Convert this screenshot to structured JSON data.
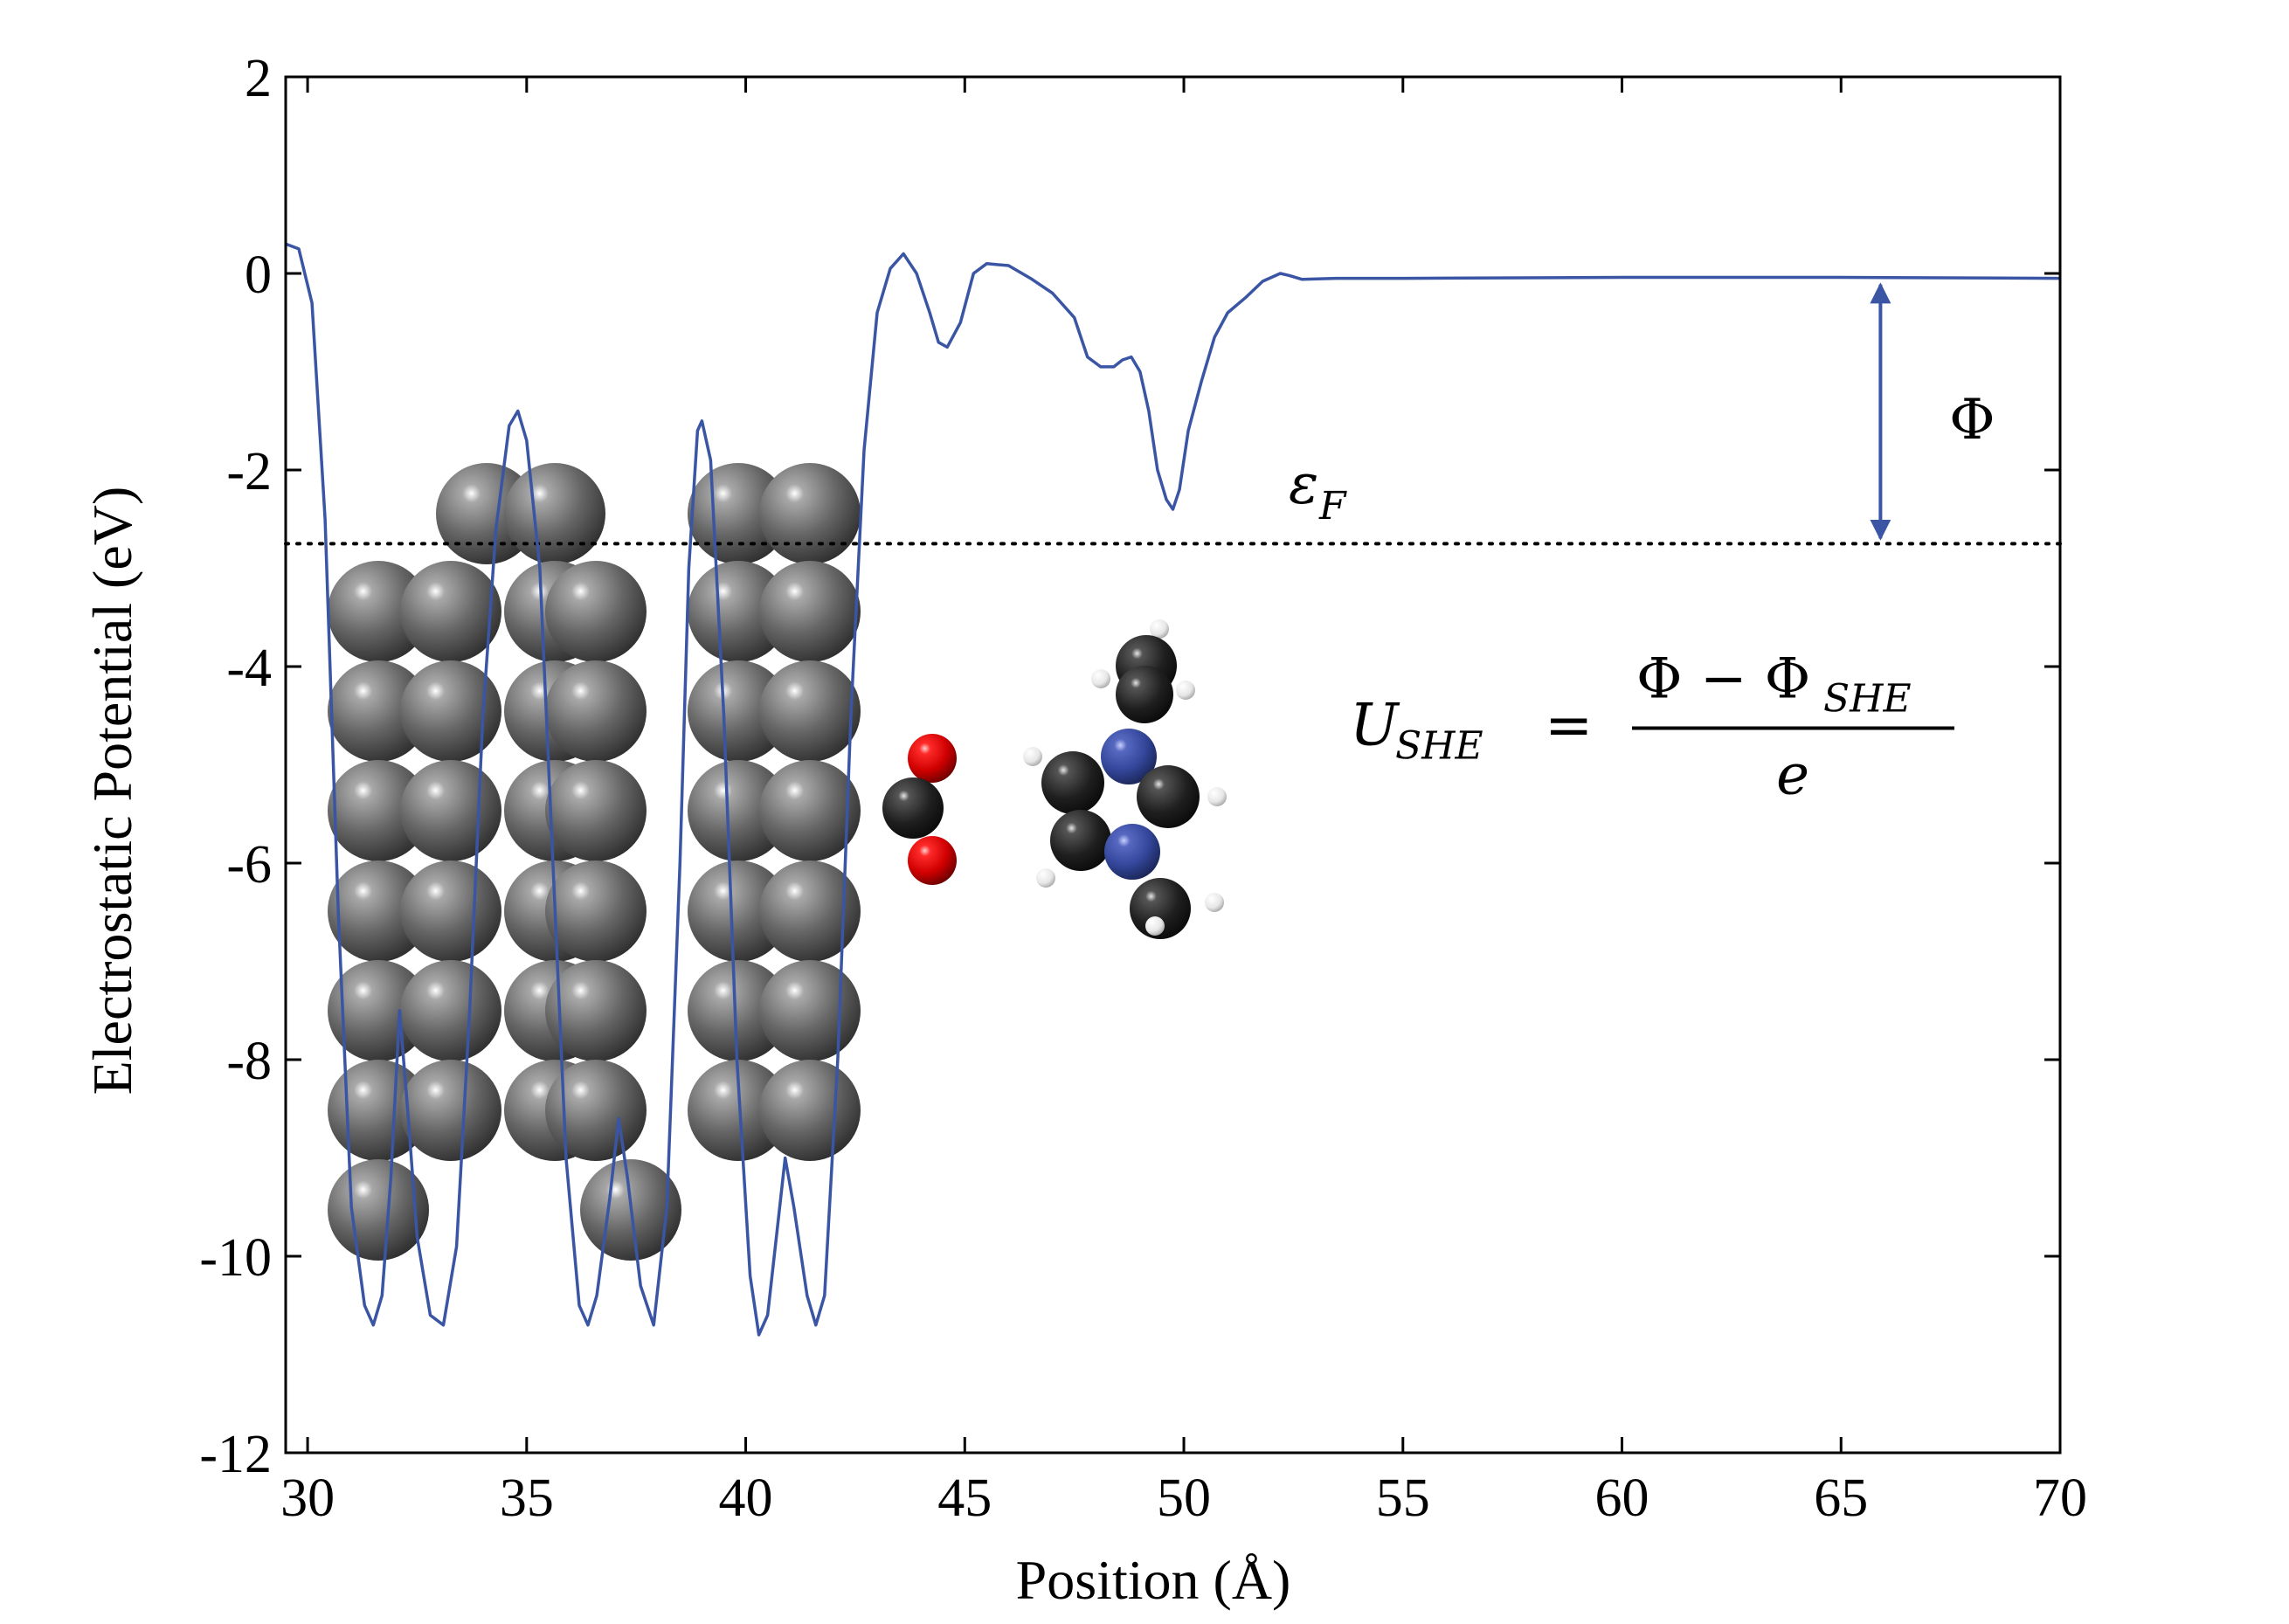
{
  "chart_data": {
    "type": "line",
    "xlabel": "Position (Å)",
    "ylabel": "Electrostatic Potential (eV)",
    "xlim": [
      29.5,
      70
    ],
    "ylim": [
      -12,
      2
    ],
    "x_ticks": [
      30,
      35,
      40,
      45,
      50,
      55,
      60,
      65,
      70
    ],
    "x_tick_labels": [
      "30",
      "35",
      "40",
      "45",
      "50",
      "55",
      "60",
      "65",
      "70"
    ],
    "y_ticks": [
      2,
      0,
      -2,
      -4,
      -6,
      -8,
      -10,
      -12
    ],
    "y_tick_labels": [
      "2",
      "0",
      "-2",
      "-4",
      "-6",
      "-8",
      "-10",
      "-12"
    ],
    "grid": false,
    "series": [
      {
        "color": "#3a55a4",
        "points": [
          [
            29.5,
            0.3
          ],
          [
            29.8,
            0.25
          ],
          [
            30.1,
            -0.3
          ],
          [
            30.4,
            -2.5
          ],
          [
            30.7,
            -6.5
          ],
          [
            31.0,
            -9.5
          ],
          [
            31.3,
            -10.5
          ],
          [
            31.5,
            -10.7
          ],
          [
            31.7,
            -10.4
          ],
          [
            31.9,
            -9.2
          ],
          [
            32.1,
            -7.5
          ],
          [
            32.3,
            -8.6
          ],
          [
            32.5,
            -9.8
          ],
          [
            32.8,
            -10.6
          ],
          [
            33.1,
            -10.7
          ],
          [
            33.4,
            -9.9
          ],
          [
            33.7,
            -7.5
          ],
          [
            34.0,
            -4.5
          ],
          [
            34.3,
            -2.6
          ],
          [
            34.6,
            -1.55
          ],
          [
            34.8,
            -1.4
          ],
          [
            35.0,
            -1.7
          ],
          [
            35.3,
            -3.0
          ],
          [
            35.6,
            -6.0
          ],
          [
            35.9,
            -9.0
          ],
          [
            36.2,
            -10.5
          ],
          [
            36.4,
            -10.7
          ],
          [
            36.6,
            -10.4
          ],
          [
            36.9,
            -9.4
          ],
          [
            37.1,
            -8.6
          ],
          [
            37.3,
            -9.2
          ],
          [
            37.6,
            -10.3
          ],
          [
            37.9,
            -10.7
          ],
          [
            38.2,
            -9.5
          ],
          [
            38.5,
            -6.0
          ],
          [
            38.7,
            -3.0
          ],
          [
            38.9,
            -1.6
          ],
          [
            39.0,
            -1.5
          ],
          [
            39.2,
            -1.9
          ],
          [
            39.5,
            -4.5
          ],
          [
            39.8,
            -8.0
          ],
          [
            40.1,
            -10.2
          ],
          [
            40.3,
            -10.8
          ],
          [
            40.5,
            -10.6
          ],
          [
            40.7,
            -9.8
          ],
          [
            40.9,
            -9.0
          ],
          [
            41.1,
            -9.5
          ],
          [
            41.4,
            -10.4
          ],
          [
            41.6,
            -10.7
          ],
          [
            41.8,
            -10.4
          ],
          [
            42.1,
            -8.0
          ],
          [
            42.4,
            -4.5
          ],
          [
            42.7,
            -1.8
          ],
          [
            43.0,
            -0.4
          ],
          [
            43.3,
            0.05
          ],
          [
            43.6,
            0.2
          ],
          [
            43.9,
            0.0
          ],
          [
            44.2,
            -0.4
          ],
          [
            44.4,
            -0.7
          ],
          [
            44.6,
            -0.75
          ],
          [
            44.9,
            -0.5
          ],
          [
            45.2,
            0.0
          ],
          [
            45.5,
            0.1
          ],
          [
            46.0,
            0.08
          ],
          [
            46.5,
            -0.05
          ],
          [
            47.0,
            -0.2
          ],
          [
            47.5,
            -0.45
          ],
          [
            47.8,
            -0.85
          ],
          [
            48.1,
            -0.95
          ],
          [
            48.4,
            -0.95
          ],
          [
            48.6,
            -0.88
          ],
          [
            48.8,
            -0.85
          ],
          [
            49.0,
            -1.0
          ],
          [
            49.2,
            -1.4
          ],
          [
            49.4,
            -2.0
          ],
          [
            49.6,
            -2.3
          ],
          [
            49.75,
            -2.4
          ],
          [
            49.9,
            -2.2
          ],
          [
            50.1,
            -1.6
          ],
          [
            50.4,
            -1.1
          ],
          [
            50.7,
            -0.65
          ],
          [
            51.0,
            -0.4
          ],
          [
            51.4,
            -0.25
          ],
          [
            51.8,
            -0.08
          ],
          [
            52.2,
            0.0
          ],
          [
            52.4,
            -0.02
          ],
          [
            52.7,
            -0.06
          ],
          [
            53.5,
            -0.05
          ],
          [
            55.0,
            -0.05
          ],
          [
            60.0,
            -0.04
          ],
          [
            65.0,
            -0.04
          ],
          [
            70.0,
            -0.05
          ]
        ]
      }
    ],
    "fermi_level": -2.75,
    "annotations": {
      "fermi_label": "ε",
      "fermi_subscript": "F",
      "workfunction_symbol": "Φ",
      "workfunction_arrow_x": 65.9,
      "formula_lhs": "U",
      "formula_lhs_sub": "SHE",
      "formula_eq": "=",
      "formula_numerator": "Φ − Φ",
      "formula_numerator_sub": "SHE",
      "formula_denominator": "e"
    },
    "colors": {
      "line": "#3a55a4",
      "metal_atom": "#666666",
      "carbon_atom": "#222222",
      "oxygen_atom": "#e01515",
      "nitrogen_atom": "#3a4fa8",
      "hydrogen_atom": "#eeeeee"
    }
  }
}
